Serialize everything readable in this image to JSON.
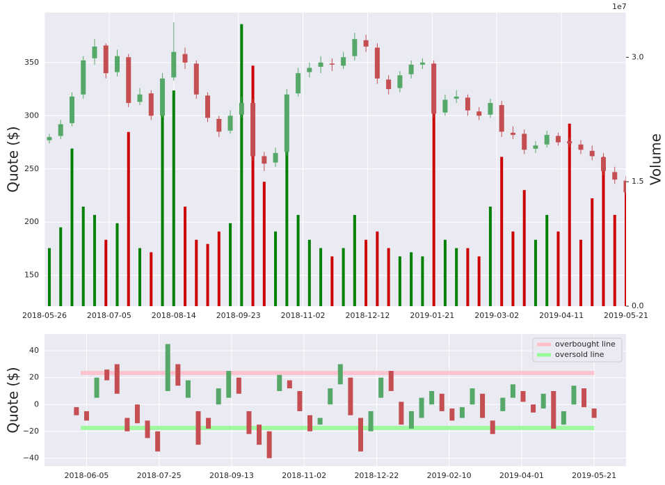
{
  "chart_data": [
    {
      "type": "candlestick",
      "ylabel": "Quote ($)",
      "y2label": "Volume",
      "y2_offset_text": "1e7",
      "x": [
        "2018-05-29",
        "2018-06-05",
        "2018-06-12",
        "2018-06-19",
        "2018-06-26",
        "2018-07-03",
        "2018-07-10",
        "2018-07-17",
        "2018-07-24",
        "2018-07-31",
        "2018-08-07",
        "2018-08-14",
        "2018-08-21",
        "2018-08-28",
        "2018-09-04",
        "2018-09-11",
        "2018-09-18",
        "2018-09-25",
        "2018-10-02",
        "2018-10-09",
        "2018-10-16",
        "2018-10-23",
        "2018-10-30",
        "2018-11-06",
        "2018-11-13",
        "2018-11-20",
        "2018-11-27",
        "2018-12-04",
        "2018-12-11",
        "2018-12-18",
        "2018-12-25",
        "2019-01-01",
        "2019-01-08",
        "2019-01-15",
        "2019-01-22",
        "2019-01-29",
        "2019-02-05",
        "2019-02-12",
        "2019-02-19",
        "2019-02-26",
        "2019-03-05",
        "2019-03-12",
        "2019-03-19",
        "2019-03-26",
        "2019-04-02",
        "2019-04-09",
        "2019-04-16",
        "2019-04-23",
        "2019-04-30",
        "2019-05-07",
        "2019-05-14",
        "2019-05-21"
      ],
      "open": [
        277,
        281,
        293,
        320,
        354,
        366,
        341,
        355,
        313,
        321,
        300,
        336,
        358,
        349,
        319,
        297,
        286,
        301,
        312,
        262,
        256,
        266,
        321,
        341,
        346,
        349,
        347,
        356,
        371,
        364,
        334,
        326,
        339,
        348,
        349,
        303,
        316,
        317,
        304,
        301,
        310,
        284,
        283,
        269,
        273,
        281,
        276,
        273,
        267,
        261,
        247,
        239
      ],
      "high": [
        283,
        296,
        322,
        356,
        372,
        368,
        362,
        358,
        326,
        324,
        340,
        388,
        364,
        352,
        322,
        300,
        305,
        318,
        316,
        266,
        270,
        325,
        345,
        350,
        356,
        354,
        360,
        378,
        376,
        368,
        338,
        342,
        352,
        354,
        352,
        320,
        324,
        320,
        308,
        316,
        314,
        290,
        287,
        276,
        286,
        284,
        280,
        277,
        272,
        265,
        252,
        243
      ],
      "low": [
        274,
        278,
        290,
        316,
        348,
        335,
        337,
        308,
        310,
        296,
        298,
        333,
        344,
        316,
        294,
        280,
        283,
        298,
        258,
        248,
        252,
        262,
        318,
        336,
        340,
        342,
        344,
        352,
        360,
        330,
        320,
        322,
        335,
        344,
        298,
        300,
        312,
        300,
        296,
        298,
        280,
        278,
        264,
        265,
        270,
        272,
        270,
        264,
        258,
        244,
        236,
        225
      ],
      "close": [
        280,
        292,
        318,
        352,
        365,
        340,
        356,
        312,
        320,
        300,
        335,
        360,
        350,
        320,
        298,
        285,
        300,
        312,
        262,
        255,
        265,
        320,
        340,
        345,
        350,
        348,
        355,
        372,
        365,
        335,
        325,
        338,
        348,
        350,
        302,
        315,
        318,
        305,
        300,
        312,
        285,
        282,
        268,
        272,
        282,
        275,
        274,
        268,
        262,
        248,
        240,
        228
      ],
      "volume": [
        7000000.0,
        9500000.0,
        19000000.0,
        12000000.0,
        11000000.0,
        8000000.0,
        10000000.0,
        21000000.0,
        7000000.0,
        6500000.0,
        24000000.0,
        26000000.0,
        12000000.0,
        8000000.0,
        7500000.0,
        9000000.0,
        10000000.0,
        34000000.0,
        29000000.0,
        15000000.0,
        9000000.0,
        21000000.0,
        11000000.0,
        8000000.0,
        7000000.0,
        6000000.0,
        7000000.0,
        11000000.0,
        8000000.0,
        9000000.0,
        7000000.0,
        6000000.0,
        6500000.0,
        6000000.0,
        25000000.0,
        8000000.0,
        7000000.0,
        7000000.0,
        6000000.0,
        12000000.0,
        18000000.0,
        9000000.0,
        14000000.0,
        8000000.0,
        11000000.0,
        9000000.0,
        22000000.0,
        8000000.0,
        13000000.0,
        18000000.0,
        11000000.0,
        15000000.0
      ],
      "up_color": "#55a868",
      "down_color": "#c44e52",
      "volume_up_color": "#008000",
      "volume_down_color": "#cc0000",
      "xlim": [
        "2018-05-26",
        "2019-05-21"
      ],
      "xticks": [
        "2018-05-26",
        "2018-07-05",
        "2018-08-14",
        "2018-09-23",
        "2018-11-02",
        "2018-12-12",
        "2019-01-21",
        "2019-03-02",
        "2019-04-11",
        "2019-05-21"
      ],
      "ylim": [
        121,
        397
      ],
      "yticks": [
        150,
        200,
        250,
        300,
        350
      ],
      "y2lim": [
        0,
        35400000
      ],
      "y2ticks": [
        {
          "value": 0,
          "label": "0.0"
        },
        {
          "value": 15000000,
          "label": "1.5"
        },
        {
          "value": 30000000,
          "label": "3.0"
        }
      ],
      "grid": true
    },
    {
      "type": "candlestick",
      "ylabel": "Quote ($)",
      "x": [
        "2018-05-29",
        "2018-06-05",
        "2018-06-12",
        "2018-06-19",
        "2018-06-26",
        "2018-07-03",
        "2018-07-10",
        "2018-07-17",
        "2018-07-24",
        "2018-07-31",
        "2018-08-07",
        "2018-08-14",
        "2018-08-21",
        "2018-08-28",
        "2018-09-04",
        "2018-09-11",
        "2018-09-18",
        "2018-09-25",
        "2018-10-02",
        "2018-10-09",
        "2018-10-16",
        "2018-10-23",
        "2018-10-30",
        "2018-11-06",
        "2018-11-13",
        "2018-11-20",
        "2018-11-27",
        "2018-12-04",
        "2018-12-11",
        "2018-12-18",
        "2018-12-25",
        "2019-01-01",
        "2019-01-08",
        "2019-01-15",
        "2019-01-22",
        "2019-01-29",
        "2019-02-05",
        "2019-02-12",
        "2019-02-19",
        "2019-02-26",
        "2019-03-05",
        "2019-03-12",
        "2019-03-19",
        "2019-03-26",
        "2019-04-02",
        "2019-04-09",
        "2019-04-16",
        "2019-04-23",
        "2019-04-30",
        "2019-05-07",
        "2019-05-14",
        "2019-05-21"
      ],
      "open": [
        -2,
        -5,
        5,
        26,
        30,
        -10,
        0,
        -12,
        -20,
        10,
        30,
        5,
        -5,
        -10,
        0,
        5,
        20,
        -5,
        -15,
        -20,
        10,
        18,
        10,
        -8,
        -15,
        0,
        15,
        20,
        -10,
        -20,
        5,
        25,
        2,
        -18,
        -10,
        0,
        8,
        -3,
        -10,
        0,
        8,
        -12,
        -5,
        5,
        10,
        0,
        -3,
        10,
        -15,
        0,
        12,
        -3
      ],
      "close": [
        -8,
        -12,
        20,
        18,
        8,
        -20,
        -14,
        -25,
        -35,
        45,
        14,
        18,
        -30,
        -18,
        12,
        25,
        8,
        -22,
        -30,
        -40,
        22,
        12,
        -5,
        -20,
        -10,
        12,
        30,
        -8,
        -35,
        -5,
        20,
        10,
        -15,
        -5,
        5,
        10,
        -5,
        -12,
        -2,
        12,
        -10,
        -22,
        5,
        15,
        2,
        -6,
        8,
        -18,
        -5,
        14,
        -2,
        -10
      ],
      "up_color": "#55a868",
      "down_color": "#c44e52",
      "lines": [
        {
          "name": "overbought line",
          "color": "#ffc0cb",
          "x": [
            "2018-06-01",
            "2019-05-21"
          ],
          "values": [
            23.5,
            23.5
          ]
        },
        {
          "name": "oversold line",
          "color": "#98fb98",
          "x": [
            "2018-06-01",
            "2019-05-21"
          ],
          "values": [
            -17.5,
            -17.5
          ]
        }
      ],
      "legend": "upper right",
      "xlim": [
        "2018-05-07",
        "2019-06-12"
      ],
      "xticks": [
        "2018-06-05",
        "2018-07-25",
        "2018-09-13",
        "2018-11-02",
        "2018-12-22",
        "2019-02-10",
        "2019-04-01",
        "2019-05-21"
      ],
      "ylim": [
        -46,
        52.5
      ],
      "yticks": [
        {
          "value": -40,
          "label": "−40"
        },
        {
          "value": -20,
          "label": "−20"
        },
        0,
        20,
        40
      ],
      "grid": true
    }
  ]
}
